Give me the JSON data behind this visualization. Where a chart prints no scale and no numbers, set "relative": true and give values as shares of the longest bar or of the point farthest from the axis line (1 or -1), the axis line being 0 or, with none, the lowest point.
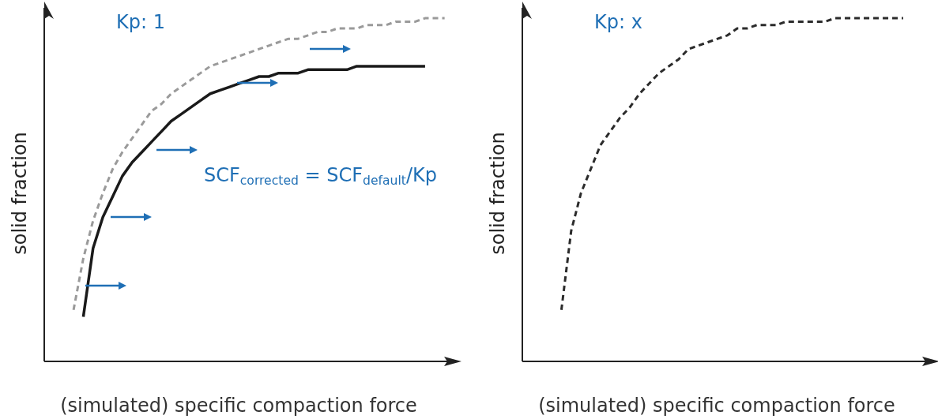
{
  "chart_data": [
    {
      "type": "line",
      "title": "Kp: 1",
      "xlabel": "(simulated) specific compaction force",
      "ylabel": "solid fraction",
      "relative": true,
      "marker": "none",
      "annotations": [
        "SCF$_{corrected}$ = SCF$_{default}$/Kp"
      ],
      "categories": [
        null,
        null,
        null,
        null,
        null,
        null,
        null,
        null,
        null,
        null,
        null,
        null,
        null,
        null,
        null,
        null,
        null,
        null,
        null,
        null,
        null,
        null,
        null,
        null,
        null,
        null,
        null,
        null,
        null,
        null,
        null,
        null,
        null,
        null,
        null,
        null,
        null,
        null,
        null,
        null,
        null,
        null,
        null
      ],
      "series": [
        {
          "color": "#9a9a9a",
          "line_style": "dashed",
          "values": [
            null,
            null,
            null,
            0.15,
            0.3,
            0.41,
            0.49,
            0.56,
            0.61,
            0.65,
            0.69,
            0.73,
            0.75,
            0.78,
            0.8,
            0.82,
            0.84,
            0.86,
            0.87,
            0.88,
            0.89,
            0.9,
            0.91,
            0.92,
            0.93,
            0.94,
            0.94,
            0.95,
            0.96,
            0.96,
            0.97,
            0.97,
            0.97,
            0.98,
            0.98,
            0.98,
            0.99,
            0.99,
            0.99,
            1.0,
            1.0,
            1.0,
            null
          ]
        },
        {
          "color": "#1a1a1a",
          "line_style": "solid",
          "values": [
            null,
            null,
            null,
            null,
            0.13,
            0.33,
            0.42,
            0.48,
            0.54,
            0.58,
            0.61,
            0.64,
            0.67,
            0.7,
            0.72,
            0.74,
            0.76,
            0.78,
            0.79,
            0.8,
            0.81,
            0.82,
            0.83,
            0.83,
            0.84,
            0.84,
            0.84,
            0.85,
            0.85,
            0.85,
            0.85,
            0.85,
            0.86,
            0.86,
            0.86,
            0.86,
            0.86,
            0.86,
            0.86,
            0.86,
            null,
            null,
            null
          ]
        }
      ]
    },
    {
      "type": "line",
      "title": "Kp: x",
      "xlabel": "(simulated) specific compaction force",
      "ylabel": "solid fraction",
      "relative": true,
      "marker": "none",
      "categories": [
        null,
        null,
        null,
        null,
        null,
        null,
        null,
        null,
        null,
        null,
        null,
        null,
        null,
        null,
        null,
        null,
        null,
        null,
        null,
        null,
        null,
        null,
        null,
        null,
        null,
        null,
        null,
        null,
        null,
        null,
        null,
        null,
        null,
        null,
        null,
        null,
        null,
        null,
        null,
        null,
        null,
        null,
        null
      ],
      "series": [
        {
          "color": "#2b2b2b",
          "line_style": "dashed",
          "values": [
            null,
            null,
            null,
            null,
            0.15,
            0.38,
            0.49,
            0.56,
            0.63,
            0.67,
            0.71,
            0.74,
            0.78,
            0.81,
            0.84,
            0.86,
            0.88,
            0.91,
            0.92,
            0.93,
            0.94,
            0.95,
            0.97,
            0.97,
            0.98,
            0.98,
            0.98,
            0.99,
            0.99,
            0.99,
            0.99,
            0.99,
            1.0,
            1.0,
            1.0,
            1.0,
            1.0,
            1.0,
            1.0,
            1.0,
            null,
            null,
            null
          ]
        }
      ]
    }
  ]
}
